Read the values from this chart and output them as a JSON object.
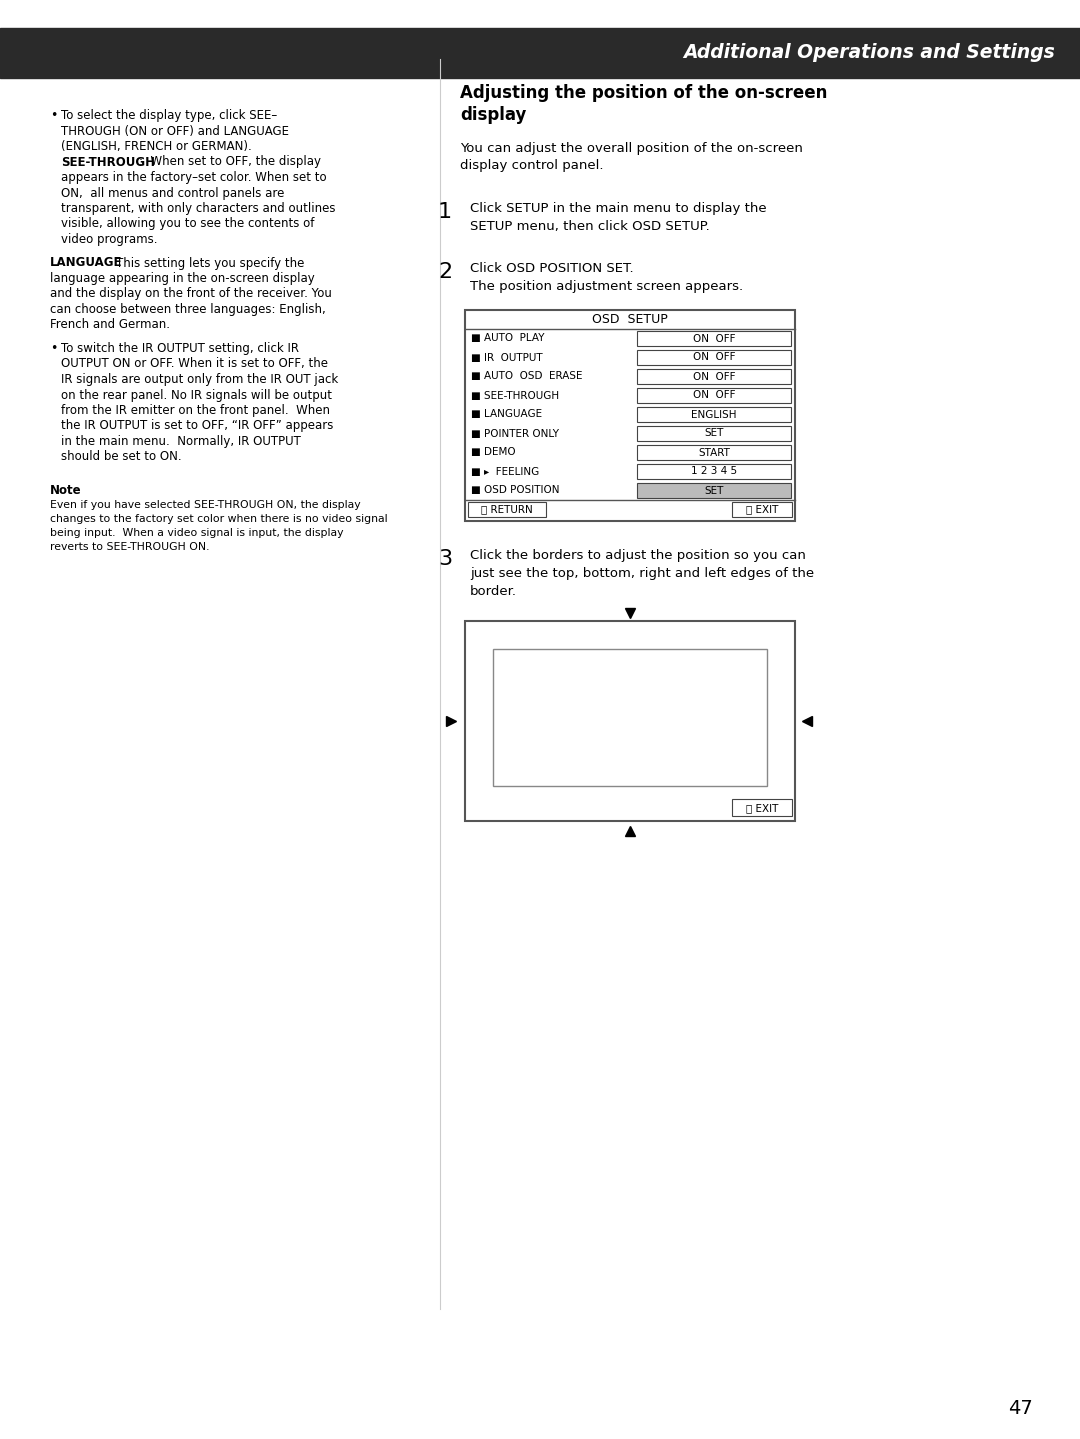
{
  "bg_color": "#ffffff",
  "header_bg": "#2a2a2a",
  "header_text": "Additional Operations and Settings",
  "header_text_color": "#ffffff",
  "page_number": "47",
  "osd_setup_rows": [
    {
      "label": "AUTO  PLAY",
      "value": "ON  OFF",
      "highlighted": false
    },
    {
      "label": "IR  OUTPUT",
      "value": "ON  OFF",
      "highlighted": false
    },
    {
      "label": "AUTO  OSD  ERASE",
      "value": "ON  OFF",
      "highlighted": false
    },
    {
      "label": "SEE-THROUGH",
      "value": "ON  OFF",
      "highlighted": false
    },
    {
      "label": "LANGUAGE",
      "value": "ENGLISH",
      "highlighted": false
    },
    {
      "label": "POINTER ONLY",
      "value": "SET",
      "highlighted": false
    },
    {
      "label": "DEMO",
      "value": "START",
      "highlighted": false
    },
    {
      "label": "▸  FEELING",
      "value": "1 2 3 4 5",
      "highlighted": false
    },
    {
      "label": "OSD POSITION",
      "value": "SET",
      "highlighted": true
    }
  ]
}
